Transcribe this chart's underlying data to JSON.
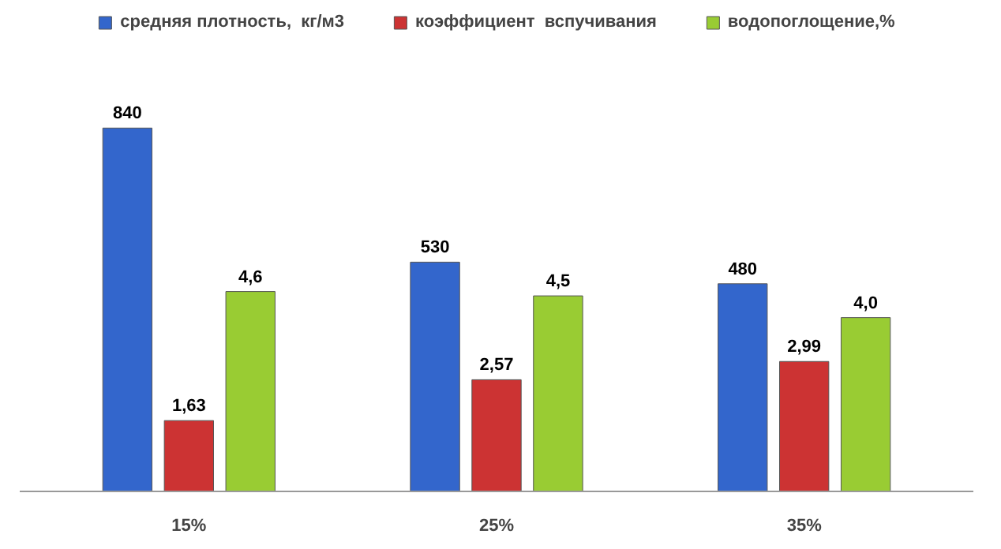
{
  "chart_data": {
    "type": "bar",
    "categories": [
      "15%",
      "25%",
      "35%"
    ],
    "legend": "top",
    "data_labels": true,
    "tick_labels": "x",
    "ylim": [
      0,
      1105
    ],
    "y2lim": [
      0,
      11.0
    ],
    "series": [
      {
        "name": "средняя плотность,  кг/м3",
        "color": "#3366cc",
        "values": [
          840,
          530,
          480
        ],
        "value_labels": [
          "840",
          "530",
          "480"
        ]
      },
      {
        "name": "коэффициент  вспучивания",
        "color": "#cc3333",
        "values": [
          1.63,
          2.57,
          2.99
        ],
        "value_labels": [
          "1,63",
          "2,57",
          "2,99"
        ],
        "axis": "y2"
      },
      {
        "name": "водопоглощение,%",
        "color": "#99cc33",
        "values": [
          4.6,
          4.5,
          4.0
        ],
        "value_labels": [
          "4,6",
          "4,5",
          "4,0"
        ],
        "axis": "y2"
      }
    ]
  }
}
